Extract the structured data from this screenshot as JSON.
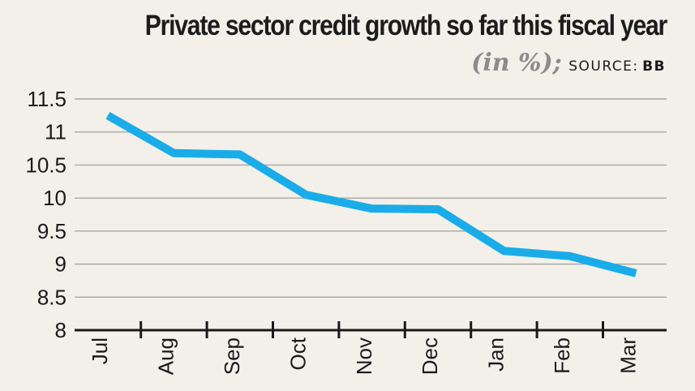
{
  "title": "Private sector credit growth so far this fiscal year",
  "subtitle": {
    "unit": "(in %);",
    "source_label": "SOURCE:",
    "source": "BB"
  },
  "chart_data": {
    "type": "line",
    "title": "Private sector credit growth so far this fiscal year",
    "xlabel": "",
    "ylabel": "",
    "categories": [
      "Jul",
      "Aug",
      "Sep",
      "Oct",
      "Nov",
      "Dec",
      "Jan",
      "Feb",
      "Mar"
    ],
    "series": [
      {
        "name": "Private sector credit growth (%)",
        "values": [
          11.25,
          10.68,
          10.66,
          10.05,
          9.84,
          9.83,
          9.2,
          9.12,
          8.86
        ]
      }
    ],
    "ylim": [
      8,
      11.5
    ],
    "yticks": [
      11.5,
      11,
      10.5,
      10,
      9.5,
      9,
      8.5,
      8
    ],
    "grid": true,
    "line_color": "#1aace8"
  }
}
